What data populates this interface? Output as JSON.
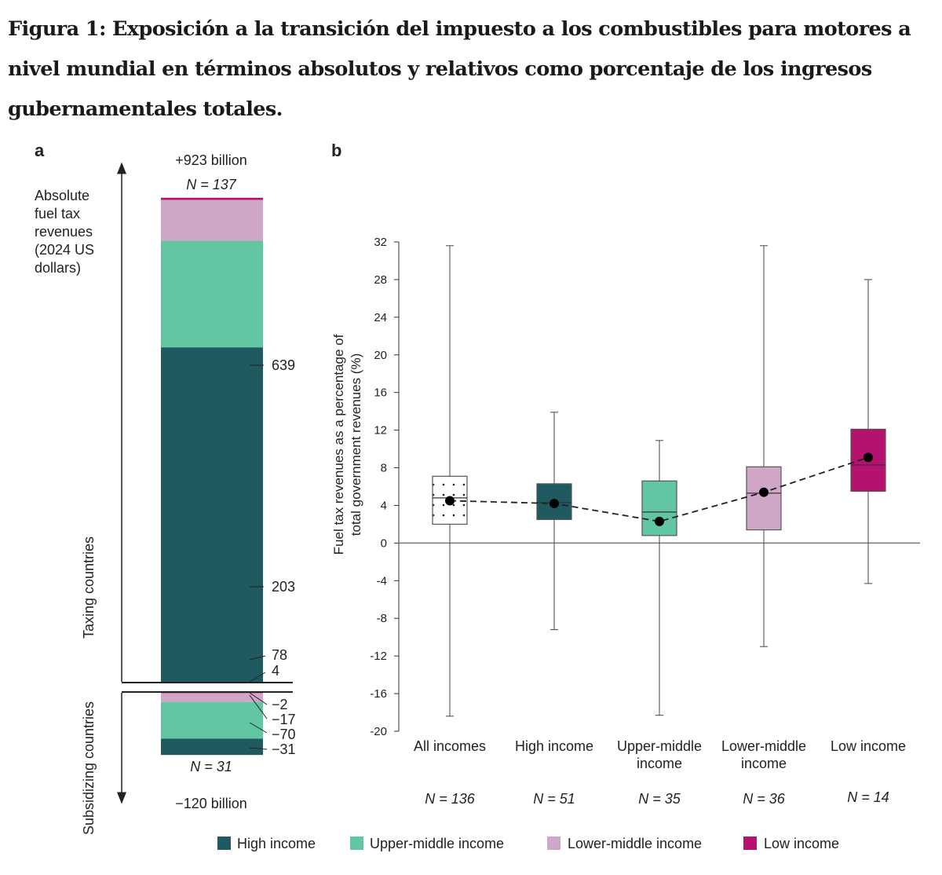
{
  "title": "Figura 1: Exposición a la transición del impuesto a los combustibles para motores a nivel mundial en términos absolutos y relativos como porcentaje de los ingresos gubernamentales totales.",
  "colors": {
    "High income": "#1f5a60",
    "Upper-middle income": "#62c6a3",
    "Lower-middle income": "#d0a6c6",
    "Low income": "#b5126f"
  },
  "legend": [
    "High income",
    "Upper-middle income",
    "Lower-middle income",
    "Low income"
  ],
  "chart_data": [
    {
      "panel": "a",
      "type": "bar",
      "subtype": "stacked",
      "ylabel": "Absolute fuel tax revenues (2024 US dollars)",
      "ylabel_lines": [
        "Absolute",
        "fuel tax",
        "revenues",
        "(2024 US",
        "dollars)"
      ],
      "top_total": "+923 billion",
      "top_n": "N = 137",
      "bottom_total": "−120 billion",
      "bottom_n": "N = 31",
      "group_labels": {
        "taxing": "Taxing countries",
        "subsidizing": "Subsidizing countries"
      },
      "taxing": [
        {
          "series": "High income",
          "value": 639,
          "label": "639"
        },
        {
          "series": "Upper-middle income",
          "value": 203,
          "label": "203"
        },
        {
          "series": "Lower-middle income",
          "value": 78,
          "label": "78"
        },
        {
          "series": "Low income",
          "value": 4,
          "label": "4"
        }
      ],
      "subsidizing": [
        {
          "series": "Low income",
          "value": -2,
          "label": "−2"
        },
        {
          "series": "Lower-middle income",
          "value": -17,
          "label": "−17"
        },
        {
          "series": "Upper-middle income",
          "value": -70,
          "label": "−70"
        },
        {
          "series": "High income",
          "value": -31,
          "label": "−31"
        }
      ]
    },
    {
      "panel": "b",
      "type": "box",
      "ylabel_lines": [
        "Fuel tax revenues as a percentage of",
        "total government revenues (%)"
      ],
      "ylim": [
        -20,
        32
      ],
      "yticks": [
        32,
        28,
        24,
        20,
        16,
        12,
        8,
        4,
        0,
        -4,
        -8,
        -12,
        -16,
        -20
      ],
      "categories": [
        {
          "label_lines": [
            "All incomes"
          ],
          "n": "N = 136",
          "series": "All incomes",
          "whisker_low": -18.4,
          "q1": 2.0,
          "median": 4.8,
          "q3": 7.1,
          "whisker_high": 31.6,
          "mean": 4.5
        },
        {
          "label_lines": [
            "High income"
          ],
          "n": "N = 51",
          "series": "High income",
          "whisker_low": -9.2,
          "q1": 2.5,
          "median": 4.3,
          "q3": 6.3,
          "whisker_high": 13.9,
          "mean": 4.2
        },
        {
          "label_lines": [
            "Upper-middle",
            "income"
          ],
          "n": "N = 35",
          "series": "Upper-middle income",
          "whisker_low": -18.3,
          "q1": 0.8,
          "median": 3.3,
          "q3": 6.6,
          "whisker_high": 10.9,
          "mean": 2.3
        },
        {
          "label_lines": [
            "Lower-middle",
            "income"
          ],
          "n": "N = 36",
          "series": "Lower-middle income",
          "whisker_low": -11.0,
          "q1": 1.4,
          "median": 5.3,
          "q3": 8.1,
          "whisker_high": 31.6,
          "mean": 5.4
        },
        {
          "label_lines": [
            "Low income"
          ],
          "n": "N = 14",
          "series": "Low income",
          "whisker_low": -4.3,
          "q1": 5.5,
          "median": 8.3,
          "q3": 12.1,
          "whisker_high": 28.0,
          "mean": 9.1
        }
      ]
    }
  ]
}
